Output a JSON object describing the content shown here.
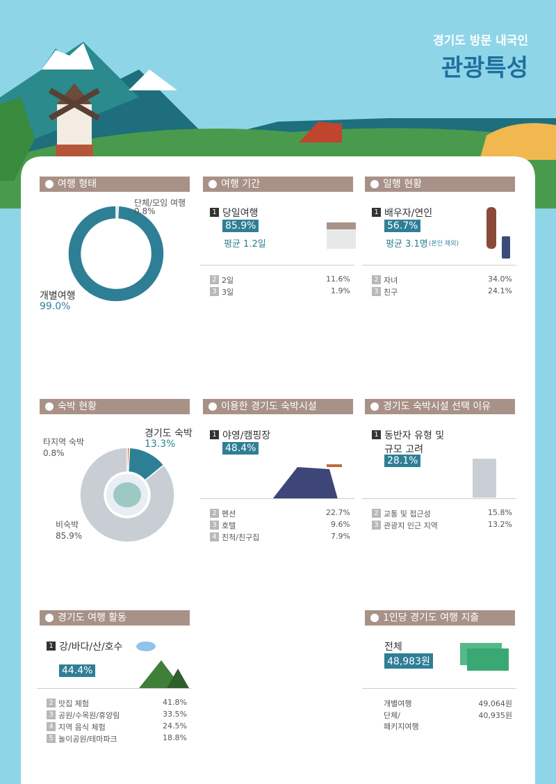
{
  "header": {
    "subtitle": "경기도 방문 내국인",
    "title": "관광특성"
  },
  "sections": [
    {
      "heading": "여행 형태",
      "donut": {
        "labels": [
          "단체/모임 여행",
          "개별여행"
        ],
        "values": [
          0.8,
          99.0
        ],
        "value_labels": [
          "0.8%",
          "99.0%"
        ],
        "colors": [
          "#cfd6db",
          "#2e7f95"
        ]
      }
    },
    {
      "heading": "여행 기간",
      "top": {
        "rank": "1",
        "label": "당일여행",
        "value": "85.9%",
        "note": "평균 1.2일"
      },
      "items": [
        {
          "rank": "2",
          "label": "2일",
          "value": "11.6%"
        },
        {
          "rank": "3",
          "label": "3일",
          "value": "1.9%"
        }
      ]
    },
    {
      "heading": "일행 현황",
      "top": {
        "rank": "1",
        "label": "배우자/연인",
        "value": "56.7%",
        "note": "평균 3.1명",
        "note_small": "(본인 제외)"
      },
      "items": [
        {
          "rank": "2",
          "label": "자녀",
          "value": "34.0%"
        },
        {
          "rank": "3",
          "label": "친구",
          "value": "24.1%"
        }
      ]
    },
    {
      "heading": "숙박 현황",
      "donut": {
        "labels": [
          "타지역 숙박",
          "경기도 숙박",
          "비숙박"
        ],
        "values": [
          0.8,
          13.3,
          85.9
        ],
        "value_labels": [
          "0.8%",
          "13.3%",
          "85.9%"
        ],
        "colors": [
          "#e07a3a",
          "#2e7f95",
          "#c8ced3"
        ]
      }
    },
    {
      "heading": "이용한 경기도 숙박시설",
      "top": {
        "rank": "1",
        "label": "야영/캠핑장",
        "value": "48.4%"
      },
      "items": [
        {
          "rank": "2",
          "label": "펜션",
          "value": "22.7%"
        },
        {
          "rank": "3",
          "label": "호텔",
          "value": "9.6%"
        },
        {
          "rank": "4",
          "label": "친척/친구집",
          "value": "7.9%"
        }
      ]
    },
    {
      "heading": "경기도 숙박시설 선택 이유",
      "top": {
        "rank": "1",
        "label": "동반자 유형 및\n규모 고려",
        "value": "28.1%"
      },
      "items": [
        {
          "rank": "2",
          "label": "교통 및 접근성",
          "value": "15.8%"
        },
        {
          "rank": "3",
          "label": "관광지 인근 지역",
          "value": "13.2%"
        }
      ]
    },
    {
      "heading": "경기도 여행 활동",
      "top": {
        "rank": "1",
        "label": "강/바다/산/호수",
        "value": "44.4%"
      },
      "items": [
        {
          "rank": "2",
          "label": "맛집 체험",
          "value": "41.8%"
        },
        {
          "rank": "3",
          "label": "공원/수목원/휴양림",
          "value": "33.5%"
        },
        {
          "rank": "4",
          "label": "지역 음식 체험",
          "value": "24.5%"
        },
        {
          "rank": "5",
          "label": "놀이공원/테마파크",
          "value": "18.8%"
        }
      ]
    },
    {
      "heading": "1인당 경기도 여행 지출",
      "top": {
        "label": "전체",
        "value": "48,983원"
      },
      "items": [
        {
          "label": "개별여행",
          "value": "49,064원"
        },
        {
          "label": "단체/\n패키지여행",
          "value": "40,935원"
        }
      ]
    }
  ]
}
